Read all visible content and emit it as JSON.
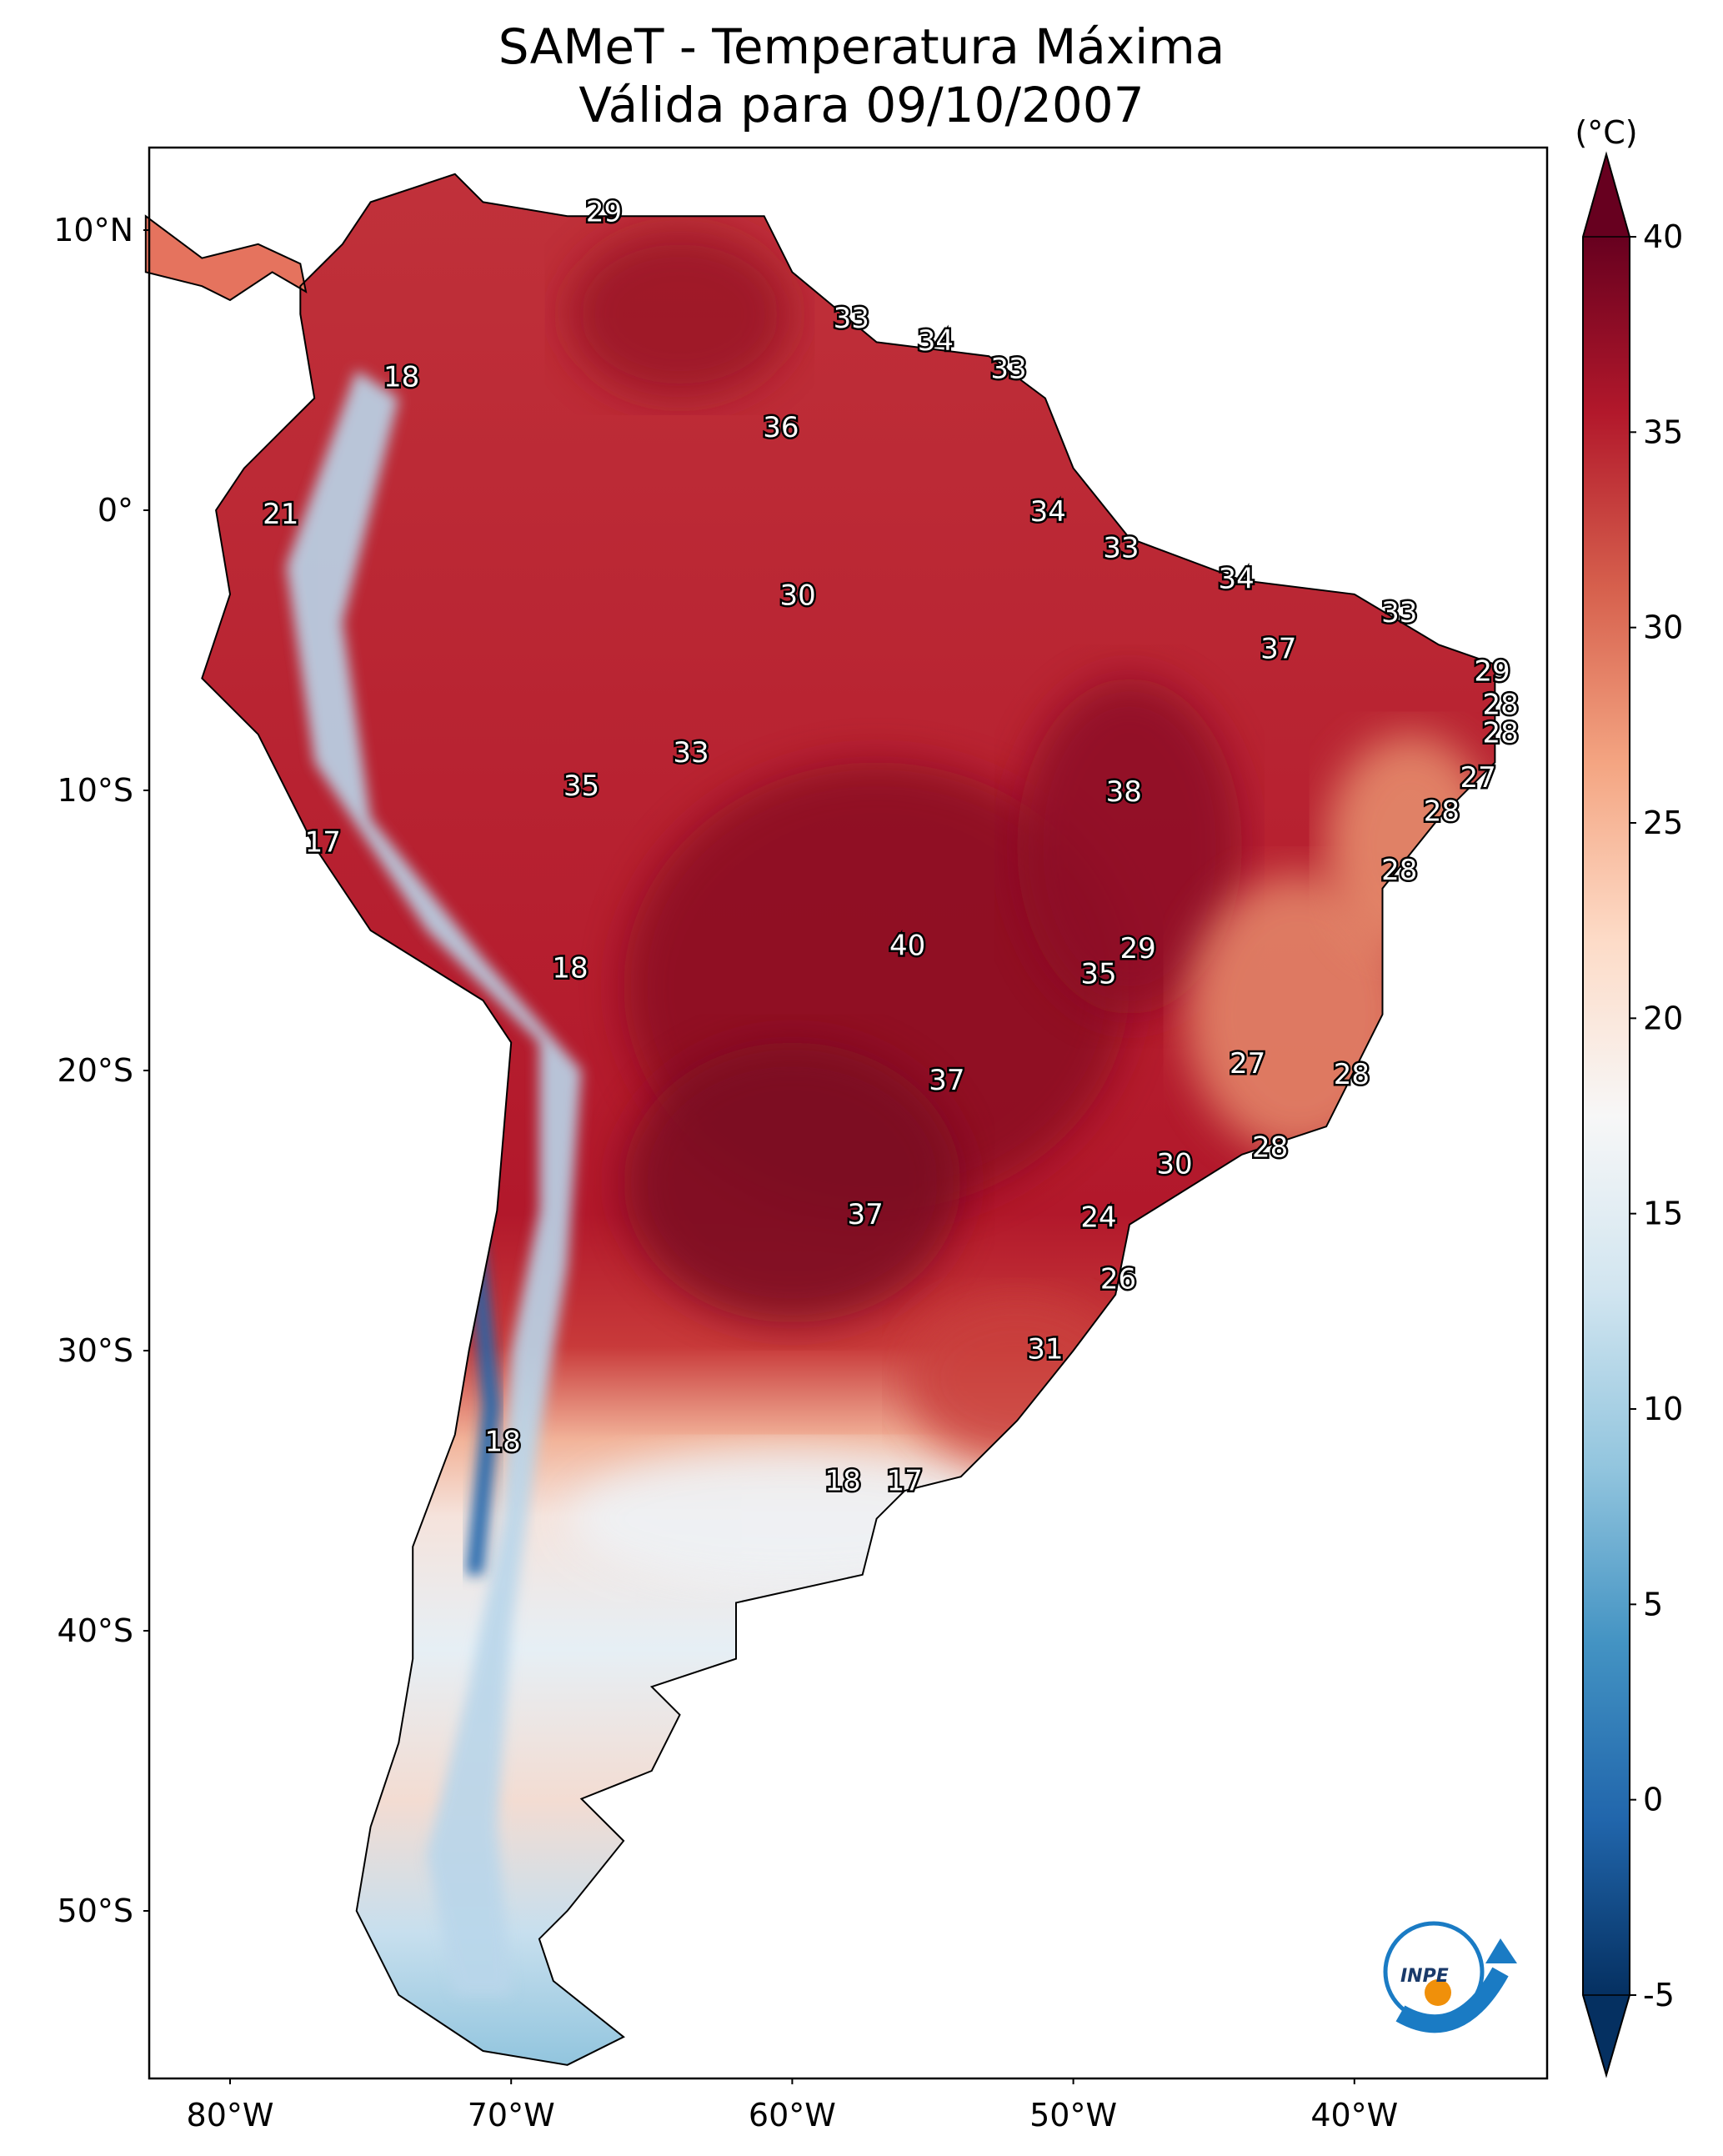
{
  "chart_data": {
    "type": "heatmap",
    "title": "SAMeT - Temperatura Máxima",
    "subtitle": "Válida para 09/10/2007",
    "colorbar": {
      "unit_label": "(°C)",
      "range": [
        -5,
        40
      ],
      "ticks": [
        "40",
        "35",
        "30",
        "25",
        "20",
        "15",
        "10",
        "5",
        "0",
        "-5"
      ],
      "tick_values": [
        40,
        35,
        30,
        25,
        20,
        15,
        10,
        5,
        0,
        -5
      ],
      "colormap": [
        "#053061",
        "#2166ac",
        "#4393c3",
        "#92c5de",
        "#d1e5f0",
        "#f7f7f7",
        "#fddbc7",
        "#f4a582",
        "#d6604d",
        "#b2182b",
        "#67001f"
      ],
      "extend": "both"
    },
    "lat_ticks": [
      {
        "label": "10°N",
        "value": 10
      },
      {
        "label": "0°",
        "value": 0
      },
      {
        "label": "10°S",
        "value": -10
      },
      {
        "label": "20°S",
        "value": -20
      },
      {
        "label": "30°S",
        "value": -30
      },
      {
        "label": "40°S",
        "value": -40
      },
      {
        "label": "50°S",
        "value": -50
      }
    ],
    "lon_ticks": [
      {
        "label": "80°W",
        "value": -80
      },
      {
        "label": "70°W",
        "value": -70
      },
      {
        "label": "60°W",
        "value": -60
      },
      {
        "label": "50°W",
        "value": -50
      },
      {
        "label": "40°W",
        "value": -40
      }
    ],
    "extent": {
      "lon": [
        -82.9,
        -33.1
      ],
      "lat": [
        -56,
        12.9
      ]
    },
    "station_labels": [
      {
        "v": "29",
        "lon": -66.7,
        "lat": 10.6
      },
      {
        "v": "33",
        "lon": -57.9,
        "lat": 6.8
      },
      {
        "v": "34",
        "lon": -54.9,
        "lat": 6.0
      },
      {
        "v": "33",
        "lon": -52.3,
        "lat": 5.0
      },
      {
        "v": "18",
        "lon": -73.9,
        "lat": 4.7
      },
      {
        "v": "36",
        "lon": -60.4,
        "lat": 2.9
      },
      {
        "v": "21",
        "lon": -78.2,
        "lat": -0.2
      },
      {
        "v": "34",
        "lon": -50.9,
        "lat": -0.1
      },
      {
        "v": "33",
        "lon": -48.3,
        "lat": -1.4
      },
      {
        "v": "30",
        "lon": -59.8,
        "lat": -3.1
      },
      {
        "v": "34",
        "lon": -44.2,
        "lat": -2.5
      },
      {
        "v": "33",
        "lon": -38.4,
        "lat": -3.7
      },
      {
        "v": "37",
        "lon": -42.7,
        "lat": -5.0
      },
      {
        "v": "29",
        "lon": -35.1,
        "lat": -5.8
      },
      {
        "v": "28",
        "lon": -34.8,
        "lat": -7.0
      },
      {
        "v": "28",
        "lon": -34.8,
        "lat": -8.0
      },
      {
        "v": "33",
        "lon": -63.6,
        "lat": -8.7
      },
      {
        "v": "35",
        "lon": -67.5,
        "lat": -9.9
      },
      {
        "v": "27",
        "lon": -35.6,
        "lat": -9.6
      },
      {
        "v": "38",
        "lon": -48.2,
        "lat": -10.1
      },
      {
        "v": "28",
        "lon": -36.9,
        "lat": -10.8
      },
      {
        "v": "17",
        "lon": -76.7,
        "lat": -11.9
      },
      {
        "v": "28",
        "lon": -38.4,
        "lat": -12.9
      },
      {
        "v": "40",
        "lon": -55.9,
        "lat": -15.6
      },
      {
        "v": "29",
        "lon": -47.7,
        "lat": -15.7
      },
      {
        "v": "18",
        "lon": -67.9,
        "lat": -16.4
      },
      {
        "v": "35",
        "lon": -49.1,
        "lat": -16.6
      },
      {
        "v": "27",
        "lon": -43.8,
        "lat": -19.8
      },
      {
        "v": "28",
        "lon": -40.1,
        "lat": -20.2
      },
      {
        "v": "37",
        "lon": -54.5,
        "lat": -20.4
      },
      {
        "v": "28",
        "lon": -43.0,
        "lat": -22.8
      },
      {
        "v": "30",
        "lon": -46.4,
        "lat": -23.4
      },
      {
        "v": "37",
        "lon": -57.4,
        "lat": -25.2
      },
      {
        "v": "24",
        "lon": -49.1,
        "lat": -25.3
      },
      {
        "v": "26",
        "lon": -48.4,
        "lat": -27.5
      },
      {
        "v": "31",
        "lon": -51.0,
        "lat": -30.0
      },
      {
        "v": "18",
        "lon": -70.3,
        "lat": -33.3
      },
      {
        "v": "18",
        "lon": -58.2,
        "lat": -34.7
      },
      {
        "v": "17",
        "lon": -56.0,
        "lat": -34.7
      }
    ],
    "logo_text": "INPE"
  }
}
